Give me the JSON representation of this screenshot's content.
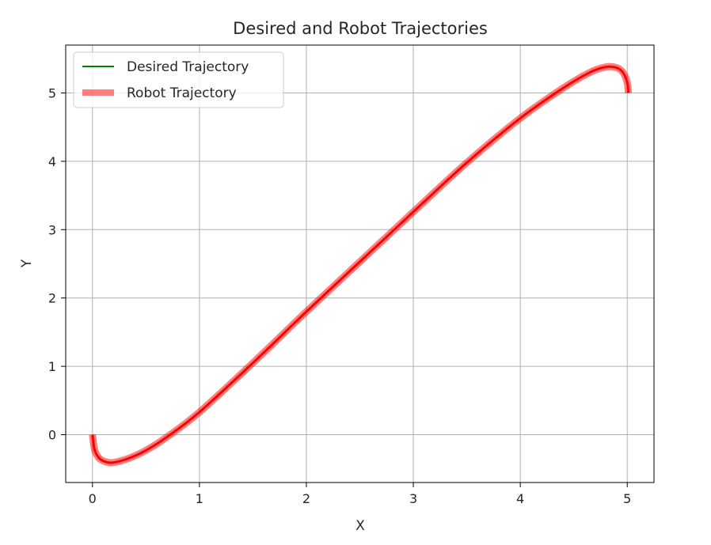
{
  "chart_data": {
    "type": "line",
    "title": "Desired and Robot Trajectories",
    "xlabel": "X",
    "ylabel": "Y",
    "xlim": [
      -0.25,
      5.25
    ],
    "ylim": [
      -0.7,
      5.7
    ],
    "xticks": [
      0,
      1,
      2,
      3,
      4,
      5
    ],
    "yticks": [
      0,
      1,
      2,
      3,
      4,
      5
    ],
    "xtick_labels": [
      "0",
      "1",
      "2",
      "3",
      "4",
      "5"
    ],
    "ytick_labels": [
      "0",
      "1",
      "2",
      "3",
      "4",
      "5"
    ],
    "grid": true,
    "legend": {
      "placement": "top-left"
    },
    "series": [
      {
        "name": "Desired Trajectory",
        "color": "#008000",
        "style": "thin-solid",
        "x": [
          0.0,
          0.02,
          0.06,
          0.11,
          0.17,
          0.25,
          0.35,
          0.5,
          0.7,
          1.0,
          1.5,
          2.0,
          2.5,
          3.0,
          3.5,
          4.0,
          4.4,
          4.65,
          4.8,
          4.9,
          4.96,
          5.0,
          5.01
        ],
        "y": [
          0.0,
          -0.22,
          -0.34,
          -0.39,
          -0.41,
          -0.39,
          -0.34,
          -0.23,
          -0.03,
          0.33,
          1.05,
          1.8,
          2.53,
          3.26,
          3.98,
          4.63,
          5.07,
          5.3,
          5.38,
          5.37,
          5.3,
          5.15,
          5.0
        ]
      },
      {
        "name": "Robot Trajectory",
        "color": "#ff0000",
        "style": "thick-translucent",
        "x": [
          0.0,
          0.02,
          0.06,
          0.11,
          0.17,
          0.25,
          0.35,
          0.5,
          0.7,
          1.0,
          1.5,
          2.0,
          2.5,
          3.0,
          3.5,
          4.0,
          4.4,
          4.65,
          4.8,
          4.9,
          4.96,
          5.0,
          5.01
        ],
        "y": [
          0.0,
          -0.22,
          -0.34,
          -0.39,
          -0.41,
          -0.39,
          -0.34,
          -0.23,
          -0.03,
          0.33,
          1.05,
          1.8,
          2.53,
          3.26,
          3.98,
          4.63,
          5.07,
          5.3,
          5.38,
          5.37,
          5.3,
          5.15,
          5.0
        ]
      }
    ]
  }
}
